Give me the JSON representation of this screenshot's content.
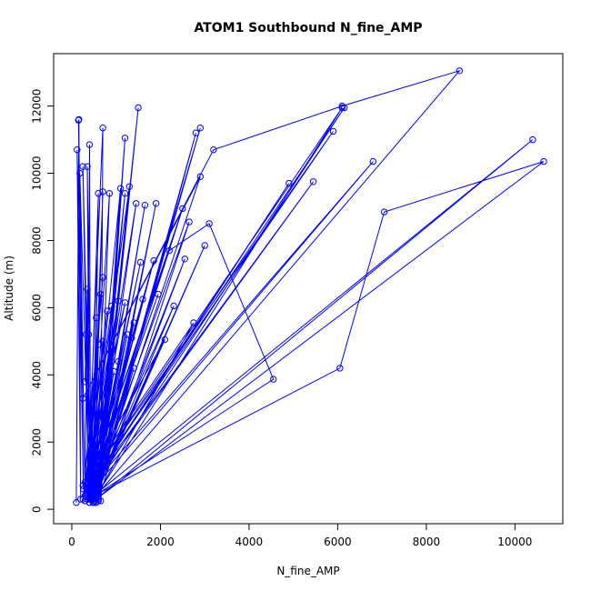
{
  "chart_data": {
    "type": "line",
    "title": "ATOM1 Southbound N_fine_AMP",
    "xlabel": "N_fine_AMP",
    "ylabel": "Altitude (m)",
    "xlim": [
      -410,
      11080
    ],
    "ylim": [
      -430,
      13560
    ],
    "xticks": [
      0,
      2000,
      4000,
      6000,
      8000,
      10000
    ],
    "yticks": [
      0,
      2000,
      4000,
      6000,
      8000,
      10000,
      12000
    ],
    "xtick_labels": [
      "0",
      "2000",
      "4000",
      "6000",
      "8000",
      "10000"
    ],
    "ytick_labels": [
      "0",
      "2000",
      "4000",
      "6000",
      "8000",
      "10000",
      "12000"
    ],
    "grid": false,
    "legend": "none",
    "color": "#0000ff",
    "marker": "open-circle",
    "series": [
      {
        "points": [
          [
            100,
            200
          ],
          [
            160,
            11600
          ],
          [
            200,
            300
          ],
          [
            120,
            10700
          ],
          [
            260,
            600
          ],
          [
            150,
            11580
          ],
          [
            300,
            250
          ],
          [
            180,
            10000
          ],
          [
            400,
            200
          ],
          [
            350,
            10200
          ],
          [
            450,
            300
          ],
          [
            2900,
            11350
          ],
          [
            500,
            250
          ],
          [
            2800,
            11200
          ],
          [
            550,
            200
          ],
          [
            1500,
            11950
          ],
          [
            600,
            300
          ],
          [
            1200,
            11050
          ],
          [
            650,
            250
          ],
          [
            700,
            11350
          ],
          [
            350,
            500
          ],
          [
            400,
            10850
          ],
          [
            420,
            400
          ],
          [
            250,
            10200
          ],
          [
            380,
            600
          ],
          [
            600,
            9400
          ],
          [
            500,
            400
          ],
          [
            2900,
            9900
          ],
          [
            250,
            3300
          ],
          [
            3200,
            10700
          ],
          [
            6100,
            12000
          ],
          [
            8750,
            13050
          ],
          [
            550,
            400
          ],
          [
            6100,
            11950
          ],
          [
            450,
            1000
          ],
          [
            5900,
            11250
          ],
          [
            500,
            900
          ],
          [
            6150,
            11950
          ],
          [
            480,
            600
          ],
          [
            6800,
            10350
          ],
          [
            520,
            800
          ],
          [
            5450,
            9750
          ],
          [
            420,
            700
          ],
          [
            4900,
            9700
          ],
          [
            350,
            500
          ],
          [
            1300,
            9600
          ],
          [
            550,
            300
          ],
          [
            1200,
            9400
          ],
          [
            500,
            500
          ],
          [
            700,
            9450
          ],
          [
            450,
            400
          ],
          [
            850,
            9400
          ],
          [
            600,
            250
          ],
          [
            1100,
            9550
          ],
          [
            400,
            300
          ],
          [
            1450,
            9100
          ],
          [
            500,
            200
          ],
          [
            1650,
            9050
          ],
          [
            550,
            300
          ],
          [
            1900,
            9100
          ],
          [
            600,
            300
          ],
          [
            2650,
            8550
          ],
          [
            450,
            500
          ],
          [
            2500,
            8950
          ],
          [
            350,
            600
          ],
          [
            2200,
            7700
          ],
          [
            3100,
            8500
          ],
          [
            4550,
            3870
          ],
          [
            400,
            300
          ],
          [
            10400,
            11000
          ],
          [
            500,
            250
          ],
          [
            10650,
            10350
          ],
          [
            7050,
            8850
          ],
          [
            6050,
            4200
          ],
          [
            500,
            400
          ],
          [
            3000,
            7850
          ],
          [
            500,
            300
          ],
          [
            2550,
            7450
          ],
          [
            400,
            200
          ],
          [
            1550,
            7350
          ],
          [
            450,
            300
          ],
          [
            1850,
            7400
          ],
          [
            350,
            400
          ],
          [
            1950,
            6400
          ],
          [
            300,
            250
          ],
          [
            1600,
            6250
          ],
          [
            500,
            400
          ],
          [
            2300,
            6050
          ],
          [
            400,
            500
          ],
          [
            1200,
            6150
          ],
          [
            300,
            800
          ],
          [
            1050,
            6200
          ],
          [
            350,
            600
          ],
          [
            900,
            6050
          ],
          [
            600,
            500
          ],
          [
            2750,
            5550
          ],
          [
            250,
            700
          ],
          [
            2100,
            5050
          ],
          [
            500,
            300
          ],
          [
            1400,
            5550
          ],
          [
            600,
            400
          ],
          [
            1350,
            5100
          ],
          [
            500,
            200
          ],
          [
            1400,
            4200
          ],
          [
            550,
            300
          ],
          [
            1250,
            5200
          ],
          [
            450,
            300
          ],
          [
            1050,
            4400
          ],
          [
            500,
            300
          ],
          [
            950,
            4100
          ],
          [
            400,
            500
          ],
          [
            800,
            3400
          ],
          [
            300,
            400
          ],
          [
            700,
            6900
          ],
          [
            250,
            300
          ],
          [
            800,
            5900
          ],
          [
            350,
            500
          ],
          [
            650,
            6400
          ],
          [
            420,
            300
          ],
          [
            550,
            5700
          ],
          [
            480,
            200
          ],
          [
            700,
            5000
          ],
          [
            520,
            400
          ],
          [
            900,
            4800
          ],
          [
            350,
            300
          ],
          [
            600,
            4900
          ],
          [
            300,
            400
          ],
          [
            350,
            6550
          ],
          [
            400,
            700
          ],
          [
            380,
            5200
          ],
          [
            300,
            3800
          ],
          [
            320,
            5200
          ],
          [
            500,
            250
          ],
          [
            900,
            4400
          ],
          [
            580,
            350
          ]
        ]
      }
    ]
  }
}
